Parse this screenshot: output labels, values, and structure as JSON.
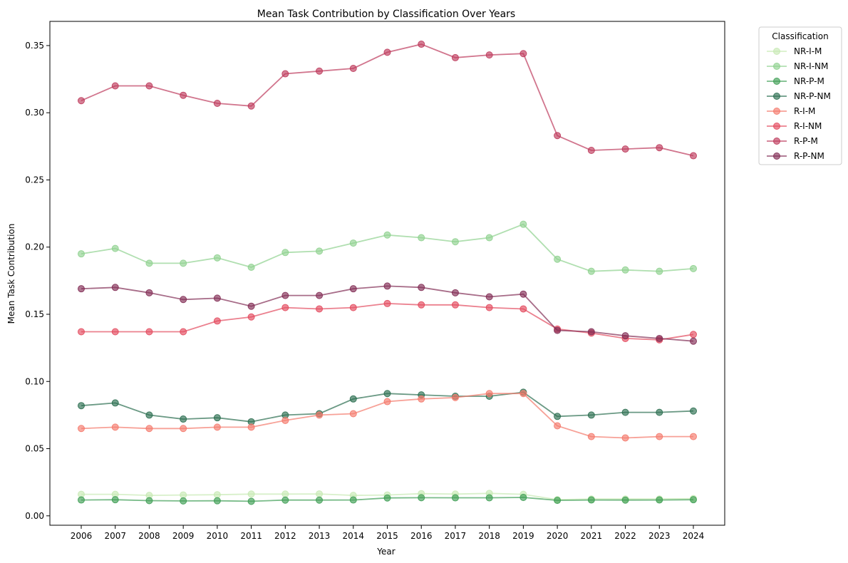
{
  "chart_data": {
    "type": "line",
    "title": "Mean Task Contribution by Classification Over Years",
    "xlabel": "Year",
    "ylabel": "Mean Task Contribution",
    "x": [
      "2006",
      "2007",
      "2008",
      "2009",
      "2010",
      "2011",
      "2012",
      "2013",
      "2014",
      "2015",
      "2016",
      "2017",
      "2018",
      "2019",
      "2020",
      "2021",
      "2022",
      "2023",
      "2024"
    ],
    "ylim": [
      -0.007,
      0.368
    ],
    "yticks": [
      0.0,
      0.05,
      0.1,
      0.15,
      0.2,
      0.25,
      0.3,
      0.35
    ],
    "ytick_labels": [
      "0.00",
      "0.05",
      "0.10",
      "0.15",
      "0.20",
      "0.25",
      "0.30",
      "0.35"
    ],
    "grid": false,
    "legend": {
      "title": "Classification",
      "placement": "outside-top-right"
    },
    "series": [
      {
        "name": "NR-I-M",
        "color": "#c7e9b4",
        "values": [
          0.016,
          0.016,
          0.0152,
          0.0155,
          0.0157,
          0.0162,
          0.0162,
          0.0163,
          0.0152,
          0.0155,
          0.0165,
          0.0162,
          0.0167,
          0.016,
          0.012,
          0.0125,
          0.0125,
          0.0125,
          0.0128
        ]
      },
      {
        "name": "NR-I-NM",
        "color": "#8fd18f",
        "values": [
          0.195,
          0.199,
          0.188,
          0.188,
          0.192,
          0.185,
          0.196,
          0.197,
          0.203,
          0.209,
          0.207,
          0.204,
          0.207,
          0.217,
          0.191,
          0.182,
          0.183,
          0.182,
          0.184
        ]
      },
      {
        "name": "NR-P-M",
        "color": "#3f9e55",
        "values": [
          0.0118,
          0.012,
          0.0113,
          0.0111,
          0.0112,
          0.0108,
          0.0117,
          0.0117,
          0.0118,
          0.0133,
          0.0135,
          0.0134,
          0.0134,
          0.0137,
          0.0115,
          0.0118,
          0.0117,
          0.0118,
          0.012
        ]
      },
      {
        "name": "NR-P-NM",
        "color": "#2b6e50",
        "values": [
          0.082,
          0.084,
          0.075,
          0.072,
          0.073,
          0.07,
          0.075,
          0.076,
          0.087,
          0.091,
          0.09,
          0.089,
          0.089,
          0.092,
          0.074,
          0.075,
          0.077,
          0.077,
          0.078
        ]
      },
      {
        "name": "R-I-M",
        "color": "#f4796b",
        "values": [
          0.065,
          0.066,
          0.065,
          0.065,
          0.066,
          0.066,
          0.071,
          0.075,
          0.076,
          0.085,
          0.087,
          0.088,
          0.091,
          0.091,
          0.067,
          0.059,
          0.058,
          0.059,
          0.059
        ]
      },
      {
        "name": "R-I-NM",
        "color": "#e34a5e",
        "values": [
          0.137,
          0.137,
          0.137,
          0.137,
          0.145,
          0.148,
          0.155,
          0.154,
          0.155,
          0.158,
          0.157,
          0.157,
          0.155,
          0.154,
          0.139,
          0.136,
          0.132,
          0.131,
          0.135
        ]
      },
      {
        "name": "R-P-M",
        "color": "#be3b5c",
        "values": [
          0.309,
          0.32,
          0.32,
          0.313,
          0.307,
          0.305,
          0.329,
          0.331,
          0.333,
          0.345,
          0.351,
          0.341,
          0.343,
          0.344,
          0.283,
          0.272,
          0.273,
          0.274,
          0.268
        ]
      },
      {
        "name": "R-P-NM",
        "color": "#822d55",
        "values": [
          0.169,
          0.17,
          0.166,
          0.161,
          0.162,
          0.156,
          0.164,
          0.164,
          0.169,
          0.171,
          0.17,
          0.166,
          0.163,
          0.165,
          0.138,
          0.137,
          0.134,
          0.132,
          0.13
        ]
      }
    ]
  }
}
